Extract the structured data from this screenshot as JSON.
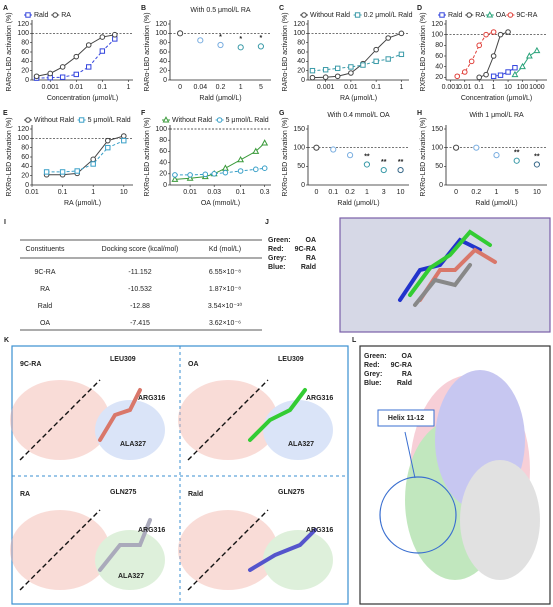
{
  "chart_data": [
    {
      "type": "line",
      "panel": "A",
      "ylabel": "RARα-LBD activation (%)",
      "xlabel": "Concentration (μmol/L)",
      "log_x": true,
      "xlim": [
        0.0002,
        1.5
      ],
      "xticks": [
        0.001,
        0.01,
        0.1,
        1
      ],
      "ylim": [
        0,
        120
      ],
      "yticks": [
        0,
        20,
        40,
        60,
        80,
        100,
        120
      ],
      "hline": 100,
      "series": [
        {
          "name": "Rald",
          "color": "#3344dd",
          "marker": "square",
          "dashed": true,
          "x": [
            0.0003,
            0.001,
            0.003,
            0.01,
            0.03,
            0.1,
            0.3
          ],
          "values": [
            4,
            5,
            6,
            12,
            28,
            62,
            88
          ]
        },
        {
          "name": "RA",
          "color": "#444444",
          "marker": "circle",
          "dashed": false,
          "x": [
            0.0003,
            0.001,
            0.003,
            0.01,
            0.03,
            0.1,
            0.3
          ],
          "values": [
            8,
            14,
            28,
            50,
            75,
            92,
            97
          ]
        }
      ]
    },
    {
      "type": "dot",
      "panel": "B",
      "title": "With 0.5 μmol/L RA",
      "ylabel": "RARα-LBD activation (%)",
      "xlabel": "Rald (μmol/L)",
      "categories": [
        "0",
        "0.04",
        "0.2",
        "1",
        "5"
      ],
      "values": [
        100,
        85,
        75,
        70,
        72
      ],
      "significance": [
        null,
        null,
        "*",
        "*",
        "*"
      ],
      "colors": [
        "#444444",
        "#7aaee0",
        "#7aaee0",
        "#3a9aa8",
        "#3a9aa8"
      ],
      "ylim": [
        0,
        120
      ],
      "yticks": [
        0,
        20,
        40,
        60,
        80,
        100,
        120
      ],
      "hline": 100
    },
    {
      "type": "line",
      "panel": "C",
      "ylabel": "RARα-LBD activation (%)",
      "xlabel": "RA (μmol/L)",
      "log_x": true,
      "xlim": [
        0.0002,
        2
      ],
      "xticks": [
        0.001,
        0.01,
        0.1,
        1
      ],
      "ylim": [
        0,
        120
      ],
      "yticks": [
        0,
        20,
        40,
        60,
        80,
        100,
        120
      ],
      "hline": 100,
      "series": [
        {
          "name": "Without Rald",
          "color": "#444444",
          "marker": "circle",
          "dashed": false,
          "x": [
            0.0003,
            0.001,
            0.003,
            0.01,
            0.03,
            0.1,
            0.3,
            1
          ],
          "values": [
            5,
            6,
            8,
            15,
            35,
            65,
            90,
            100
          ]
        },
        {
          "name": "0.2 μmol/L Rald",
          "color": "#3a9aa8",
          "marker": "square",
          "dashed": true,
          "x": [
            0.0003,
            0.001,
            0.003,
            0.01,
            0.03,
            0.1,
            0.3,
            1
          ],
          "values": [
            20,
            22,
            25,
            28,
            32,
            40,
            45,
            55
          ]
        }
      ]
    },
    {
      "type": "line",
      "panel": "D",
      "ylabel": "RXRα-LBD activation (%)",
      "xlabel": "Concentration (μmol/L)",
      "log_x": true,
      "xlim": [
        0.0005,
        5000
      ],
      "xticks": [
        0.001,
        0.01,
        0.1,
        1,
        10,
        100,
        1000
      ],
      "ylim": [
        15,
        120
      ],
      "yticks": [
        20,
        40,
        60,
        80,
        100,
        120
      ],
      "hline": 100,
      "series": [
        {
          "name": "Rald",
          "color": "#3344dd",
          "marker": "square",
          "dashed": false,
          "x": [
            1,
            3,
            10,
            30
          ],
          "values": [
            22,
            24,
            30,
            38
          ]
        },
        {
          "name": "RA",
          "color": "#444444",
          "marker": "circle",
          "dashed": false,
          "x": [
            0.1,
            0.3,
            1,
            3,
            10
          ],
          "values": [
            20,
            25,
            60,
            100,
            105
          ]
        },
        {
          "name": "OA",
          "color": "#2aa37a",
          "marker": "triangle",
          "dashed": false,
          "x": [
            30,
            100,
            300,
            1000
          ],
          "values": [
            25,
            40,
            60,
            70
          ]
        },
        {
          "name": "9C-RA",
          "color": "#e0403a",
          "marker": "circle",
          "dashed": true,
          "x": [
            0.003,
            0.01,
            0.03,
            0.1,
            0.3,
            1
          ],
          "values": [
            22,
            30,
            50,
            80,
            100,
            105
          ]
        }
      ]
    },
    {
      "type": "line",
      "panel": "E",
      "ylabel": "RXRα-LBD activation (%)",
      "xlabel": "RA (μmol/L)",
      "log_x": true,
      "xlim": [
        0.01,
        20
      ],
      "xticks": [
        0.01,
        0.1,
        1,
        10
      ],
      "ylim": [
        0,
        120
      ],
      "yticks": [
        0,
        20,
        40,
        60,
        80,
        100,
        120
      ],
      "hline": 100,
      "series": [
        {
          "name": "Without Rald",
          "color": "#444444",
          "marker": "circle",
          "dashed": false,
          "x": [
            0.03,
            0.1,
            0.3,
            1,
            3,
            10
          ],
          "values": [
            22,
            22,
            25,
            55,
            95,
            105
          ]
        },
        {
          "name": "5 μmol/L Rald",
          "color": "#3aa0c8",
          "marker": "square",
          "dashed": true,
          "x": [
            0.03,
            0.1,
            0.3,
            1,
            3,
            10
          ],
          "values": [
            28,
            28,
            30,
            45,
            80,
            95
          ]
        }
      ]
    },
    {
      "type": "line",
      "panel": "F",
      "ylabel": "RXRα-LBD activation (%)",
      "xlabel": "OA (mmol/L)",
      "log_x": true,
      "xlim": [
        0.004,
        0.4
      ],
      "xticks": [
        0.01,
        0.03,
        0.1,
        0.3
      ],
      "ylim": [
        0,
        100
      ],
      "yticks": [
        0,
        20,
        40,
        60,
        80,
        100
      ],
      "hline": 100,
      "series": [
        {
          "name": "Without Rald",
          "color": "#3a9a3a",
          "marker": "triangle",
          "dashed": false,
          "x": [
            0.005,
            0.01,
            0.02,
            0.03,
            0.05,
            0.1,
            0.2,
            0.3
          ],
          "values": [
            10,
            12,
            15,
            20,
            30,
            45,
            60,
            75
          ]
        },
        {
          "name": "5 μmol/L Rald",
          "color": "#3aa0c8",
          "marker": "circle",
          "dashed": true,
          "x": [
            0.005,
            0.01,
            0.02,
            0.03,
            0.05,
            0.1,
            0.2,
            0.3
          ],
          "values": [
            18,
            18,
            19,
            20,
            22,
            25,
            28,
            30
          ]
        }
      ]
    },
    {
      "type": "dot",
      "panel": "G",
      "title": "With 0.4 mmol/L OA",
      "ylabel": "RXRα-LBD activation (%)",
      "xlabel": "Rald (μmol/L)",
      "categories": [
        "0",
        "0.1",
        "0.2",
        "1",
        "3",
        "10"
      ],
      "values": [
        100,
        95,
        80,
        55,
        40,
        40
      ],
      "significance": [
        null,
        null,
        null,
        "**",
        "**",
        "**"
      ],
      "colors": [
        "#444444",
        "#7aaee0",
        "#7aaee0",
        "#3a9aa8",
        "#3a9aa8",
        "#3a6a8a"
      ],
      "ylim": [
        0,
        150
      ],
      "yticks": [
        0,
        50,
        100,
        150
      ],
      "hline": 100
    },
    {
      "type": "dot",
      "panel": "H",
      "title": "With 1 μmol/L RA",
      "ylabel": "RXRα-LBD activation (%)",
      "xlabel": "Rald (μmol/L)",
      "categories": [
        "0",
        "0.2",
        "1",
        "5",
        "10"
      ],
      "values": [
        100,
        100,
        80,
        65,
        55
      ],
      "significance": [
        null,
        null,
        null,
        "**",
        "**"
      ],
      "colors": [
        "#444444",
        "#7aaee0",
        "#7aaee0",
        "#3a9aa8",
        "#3a6a8a"
      ],
      "ylim": [
        0,
        150
      ],
      "yticks": [
        0,
        50,
        100,
        150
      ],
      "hline": 100
    }
  ],
  "table": {
    "panel": "I",
    "header": [
      "Constituents",
      "Docking score (kcal/mol)",
      "Kd (mol/L)"
    ],
    "rows": [
      [
        "9C-RA",
        "-11.152",
        "6.55×10⁻⁸"
      ],
      [
        "RA",
        "-10.532",
        "1.87×10⁻⁸"
      ],
      [
        "Rald",
        "-12.88",
        "3.54×10⁻¹⁰"
      ],
      [
        "OA",
        "-7.415",
        "3.62×10⁻⁶"
      ]
    ]
  },
  "panel_j": {
    "panel": "J",
    "legend": [
      [
        "Green:",
        "OA"
      ],
      [
        "Red:",
        "9C-RA"
      ],
      [
        "Grey:",
        "RA"
      ],
      [
        "Blue:",
        "Rald"
      ]
    ]
  },
  "panel_k": {
    "panel": "K",
    "views": [
      {
        "ligand": "9C-RA",
        "residues": [
          "LEU309",
          "ARG316",
          "ALA327"
        ]
      },
      {
        "ligand": "OA",
        "residues": [
          "LEU309",
          "ARG316",
          "ALA327"
        ]
      },
      {
        "ligand": "RA",
        "residues": [
          "GLN275",
          "ARG316",
          "ALA327"
        ]
      },
      {
        "ligand": "Rald",
        "residues": [
          "GLN275",
          "ARG316"
        ]
      }
    ]
  },
  "panel_l": {
    "panel": "L",
    "legend": [
      [
        "Green:",
        "OA"
      ],
      [
        "Red:",
        "9C-RA"
      ],
      [
        "Grey:",
        "RA"
      ],
      [
        "Blue:",
        "Rald"
      ]
    ],
    "annotation": "Helix 11-12"
  }
}
